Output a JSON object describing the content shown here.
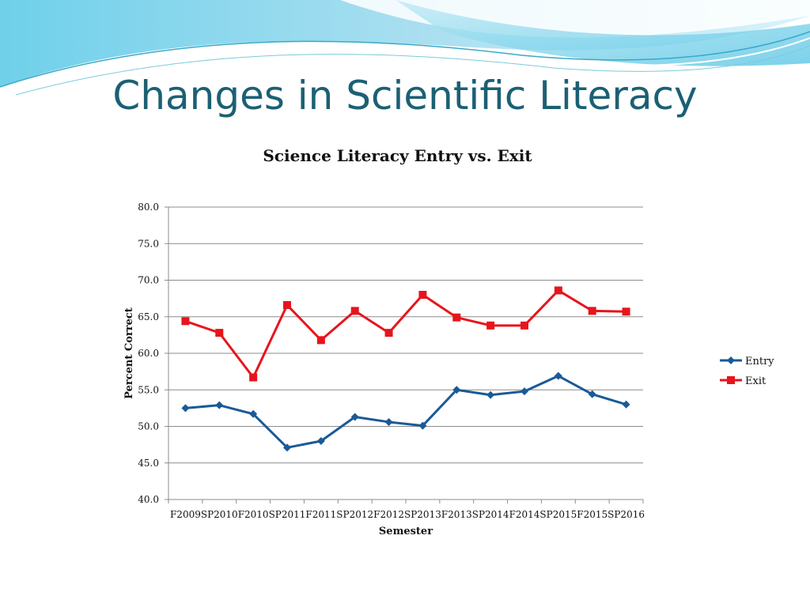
{
  "slide": {
    "title": "Changes in Scientific Literacy"
  },
  "colors": {
    "title": "#1b6074",
    "entry": "#1a5a97",
    "exit": "#e8141c",
    "grid": "#8c8c8c",
    "banner_dark": "#5cc6e6",
    "banner_light": "#c4eef8"
  },
  "chart_data": {
    "type": "line",
    "title": "Science Literacy Entry vs. Exit",
    "xlabel": "Semester",
    "ylabel": "Percent Correct",
    "categories": [
      "F2009",
      "SP2010",
      "F2010",
      "SP2011",
      "F2011",
      "SP2012",
      "F2012",
      "SP2013",
      "F2013",
      "SP2014",
      "F2014",
      "SP2015",
      "F2015",
      "SP2016"
    ],
    "ylim": [
      40,
      80
    ],
    "yticks": [
      "80.0",
      "75.0",
      "70.0",
      "65.0",
      "60.0",
      "55.0",
      "50.0",
      "45.0",
      "40.0"
    ],
    "series": [
      {
        "name": "Entry",
        "color": "#1a5a97",
        "marker": "diamond",
        "values": [
          52.5,
          52.9,
          51.7,
          47.1,
          48.0,
          51.3,
          50.6,
          50.1,
          55.0,
          54.3,
          54.8,
          56.9,
          54.4,
          53.0
        ]
      },
      {
        "name": "Exit",
        "color": "#e8141c",
        "marker": "square",
        "values": [
          64.4,
          62.8,
          56.7,
          66.6,
          61.8,
          65.8,
          62.8,
          68.0,
          64.9,
          63.8,
          63.8,
          68.6,
          65.8,
          65.7
        ]
      }
    ],
    "grid": true,
    "legend": "right"
  }
}
